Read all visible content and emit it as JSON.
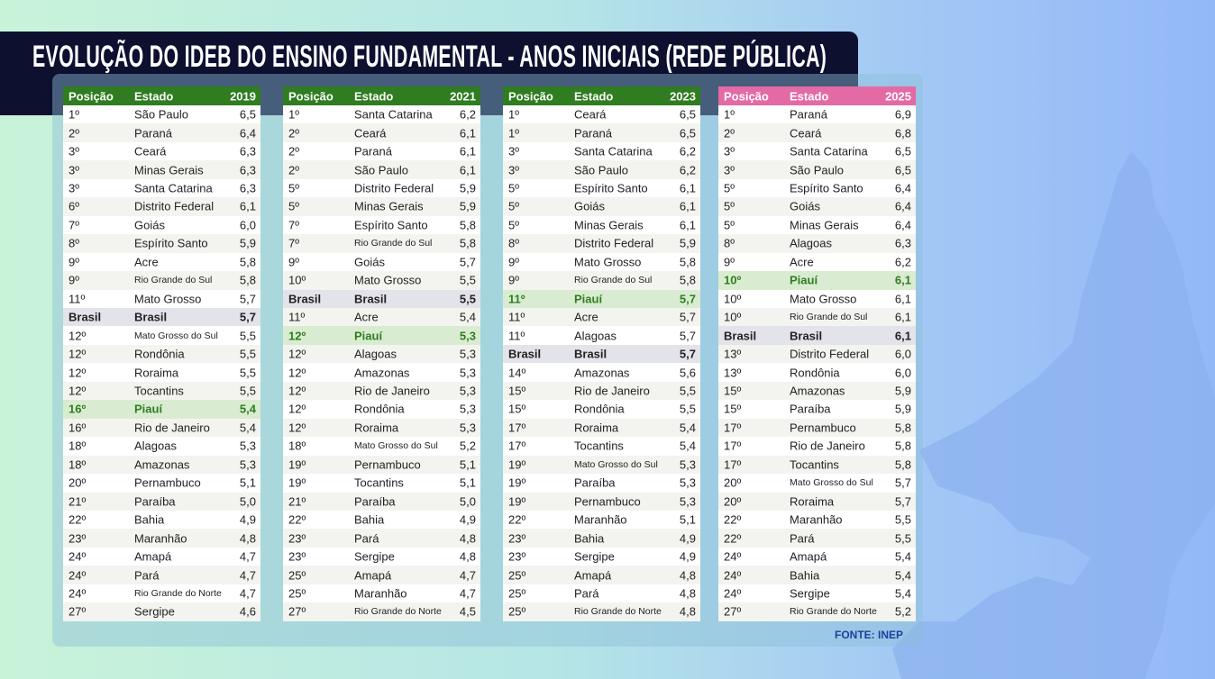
{
  "title": "EVOLUÇÃO DO IDEB DO ENSINO FUNDAMENTAL - ANOS INICIAIS (REDE PÚBLICA)",
  "tables": [
    {
      "header": [
        "Posição",
        "Estado",
        "2019"
      ],
      "rows": [
        [
          "1º",
          "São Paulo",
          "6,5"
        ],
        [
          "2º",
          "Paraná",
          "6,4"
        ],
        [
          "3º",
          "Ceará",
          "6,3"
        ],
        [
          "3º",
          "Minas Gerais",
          "6,3"
        ],
        [
          "3º",
          "Santa Catarina",
          "6,3"
        ],
        [
          "6º",
          "Distrito Federal",
          "6,1"
        ],
        [
          "7º",
          "Goiás",
          "6,0"
        ],
        [
          "8º",
          "Espírito Santo",
          "5,9"
        ],
        [
          "9º",
          "Acre",
          "5,8"
        ],
        [
          "9º",
          "Rio Grande do Sul",
          "5,8"
        ],
        [
          "11º",
          "Mato Grosso",
          "5,7"
        ],
        [
          "Brasil",
          "Brasil",
          "5,7"
        ],
        [
          "12º",
          "Mato Grosso do Sul",
          "5,5"
        ],
        [
          "12º",
          "Rondônia",
          "5,5"
        ],
        [
          "12º",
          "Roraima",
          "5,5"
        ],
        [
          "12º",
          "Tocantins",
          "5,5"
        ],
        [
          "16º",
          "Piauí",
          "5,4"
        ],
        [
          "16º",
          "Rio de Janeiro",
          "5,4"
        ],
        [
          "18º",
          "Alagoas",
          "5,3"
        ],
        [
          "18º",
          "Amazonas",
          "5,3"
        ],
        [
          "20º",
          "Pernambuco",
          "5,1"
        ],
        [
          "21º",
          "Paraíba",
          "5,0"
        ],
        [
          "22º",
          "Bahia",
          "4,9"
        ],
        [
          "23º",
          "Maranhão",
          "4,8"
        ],
        [
          "24º",
          "Amapá",
          "4,7"
        ],
        [
          "24º",
          "Pará",
          "4,7"
        ],
        [
          "24º",
          "Rio Grande do Norte",
          "4,7"
        ],
        [
          "27º",
          "Sergipe",
          "4,6"
        ]
      ]
    },
    {
      "header": [
        "Posição",
        "Estado",
        "2021"
      ],
      "rows": [
        [
          "1º",
          "Santa Catarina",
          "6,2"
        ],
        [
          "2º",
          "Ceará",
          "6,1"
        ],
        [
          "2º",
          "Paraná",
          "6,1"
        ],
        [
          "2º",
          "São Paulo",
          "6,1"
        ],
        [
          "5º",
          "Distrito Federal",
          "5,9"
        ],
        [
          "5º",
          "Minas Gerais",
          "5,9"
        ],
        [
          "7º",
          "Espírito Santo",
          "5,8"
        ],
        [
          "7º",
          "Rio Grande do Sul",
          "5,8"
        ],
        [
          "9º",
          "Goiás",
          "5,7"
        ],
        [
          "10º",
          "Mato Grosso",
          "5,5"
        ],
        [
          "Brasil",
          "Brasil",
          "5,5"
        ],
        [
          "11º",
          "Acre",
          "5,4"
        ],
        [
          "12º",
          "Piauí",
          "5,3"
        ],
        [
          "12º",
          "Alagoas",
          "5,3"
        ],
        [
          "12º",
          "Amazonas",
          "5,3"
        ],
        [
          "12º",
          "Rio de Janeiro",
          "5,3"
        ],
        [
          "12º",
          "Rondônia",
          "5,3"
        ],
        [
          "12º",
          "Roraima",
          "5,3"
        ],
        [
          "18º",
          "Mato Grosso do Sul",
          "5,2"
        ],
        [
          "19º",
          "Pernambuco",
          "5,1"
        ],
        [
          "19º",
          "Tocantins",
          "5,1"
        ],
        [
          "21º",
          "Paraíba",
          "5,0"
        ],
        [
          "22º",
          "Bahia",
          "4,9"
        ],
        [
          "23º",
          "Pará",
          "4,8"
        ],
        [
          "23º",
          "Sergipe",
          "4,8"
        ],
        [
          "25º",
          "Amapá",
          "4,7"
        ],
        [
          "25º",
          "Maranhão",
          "4,7"
        ],
        [
          "27º",
          "Rio Grande do Norte",
          "4,5"
        ]
      ]
    },
    {
      "header": [
        "Posição",
        "Estado",
        "2023"
      ],
      "rows": [
        [
          "1º",
          "Ceará",
          "6,5"
        ],
        [
          "1º",
          "Paraná",
          "6,5"
        ],
        [
          "3º",
          "Santa Catarina",
          "6,2"
        ],
        [
          "3º",
          "São Paulo",
          "6,2"
        ],
        [
          "5º",
          "Espírito Santo",
          "6,1"
        ],
        [
          "5º",
          "Goiás",
          "6,1"
        ],
        [
          "5º",
          "Minas Gerais",
          "6,1"
        ],
        [
          "8º",
          "Distrito Federal",
          "5,9"
        ],
        [
          "9º",
          "Mato Grosso",
          "5,8"
        ],
        [
          "9º",
          "Rio Grande do Sul",
          "5,8"
        ],
        [
          "11º",
          "Piauí",
          "5,7"
        ],
        [
          "11º",
          "Acre",
          "5,7"
        ],
        [
          "11º",
          "Alagoas",
          "5,7"
        ],
        [
          "Brasil",
          "Brasil",
          "5,7"
        ],
        [
          "14º",
          "Amazonas",
          "5,6"
        ],
        [
          "15º",
          "Rio de Janeiro",
          "5,5"
        ],
        [
          "15º",
          "Rondônia",
          "5,5"
        ],
        [
          "17º",
          "Roraima",
          "5,4"
        ],
        [
          "17º",
          "Tocantins",
          "5,4"
        ],
        [
          "19º",
          "Mato Grosso do Sul",
          "5,3"
        ],
        [
          "19º",
          "Paraíba",
          "5,3"
        ],
        [
          "19º",
          "Pernambuco",
          "5,3"
        ],
        [
          "22º",
          "Maranhão",
          "5,1"
        ],
        [
          "23º",
          "Bahia",
          "4,9"
        ],
        [
          "23º",
          "Sergipe",
          "4,9"
        ],
        [
          "25º",
          "Amapá",
          "4,8"
        ],
        [
          "25º",
          "Pará",
          "4,8"
        ],
        [
          "25º",
          "Rio Grande do Norte",
          "4,8"
        ]
      ]
    },
    {
      "header": [
        "Posição",
        "Estado",
        "2025"
      ],
      "rows": [
        [
          "1º",
          "Paraná",
          "6,9"
        ],
        [
          "2º",
          "Ceará",
          "6,8"
        ],
        [
          "3º",
          "Santa Catarina",
          "6,5"
        ],
        [
          "3º",
          "São Paulo",
          "6,5"
        ],
        [
          "5º",
          "Espírito Santo",
          "6,4"
        ],
        [
          "5º",
          "Goiás",
          "6,4"
        ],
        [
          "5º",
          "Minas Gerais",
          "6,4"
        ],
        [
          "8º",
          "Alagoas",
          "6,3"
        ],
        [
          "9º",
          "Acre",
          "6,2"
        ],
        [
          "10º",
          "Piauí",
          "6,1"
        ],
        [
          "10º",
          "Mato Grosso",
          "6,1"
        ],
        [
          "10º",
          "Rio Grande do Sul",
          "6,1"
        ],
        [
          "Brasil",
          "Brasil",
          "6,1"
        ],
        [
          "13º",
          "Distrito Federal",
          "6,0"
        ],
        [
          "13º",
          "Rondônia",
          "6,0"
        ],
        [
          "15º",
          "Amazonas",
          "5,9"
        ],
        [
          "15º",
          "Paraíba",
          "5,9"
        ],
        [
          "17º",
          "Pernambuco",
          "5,8"
        ],
        [
          "17º",
          "Rio de Janeiro",
          "5,8"
        ],
        [
          "17º",
          "Tocantins",
          "5,8"
        ],
        [
          "20º",
          "Mato Grosso do Sul",
          "5,7"
        ],
        [
          "20º",
          "Roraima",
          "5,7"
        ],
        [
          "22º",
          "Maranhão",
          "5,5"
        ],
        [
          "22º",
          "Pará",
          "5,5"
        ],
        [
          "24º",
          "Amapá",
          "5,4"
        ],
        [
          "24º",
          "Bahia",
          "5,4"
        ],
        [
          "24º",
          "Sergipe",
          "5,4"
        ],
        [
          "27º",
          "Rio Grande do Norte",
          "5,2"
        ]
      ]
    }
  ],
  "source": "FONTE: INEP"
}
